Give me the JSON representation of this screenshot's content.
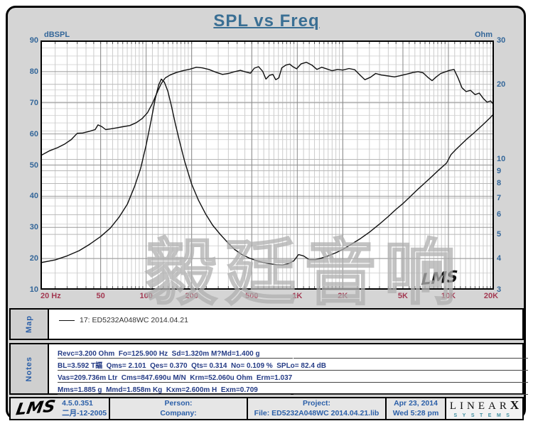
{
  "title": "SPL vs Freq",
  "watermark": "毅廷音响",
  "chart_data": {
    "type": "line",
    "title": "SPL vs Freq",
    "grid": true,
    "x_axis": {
      "scale": "log",
      "min": 20,
      "max": 20000,
      "tick_values": [
        20,
        50,
        100,
        200,
        500,
        1000,
        2000,
        5000,
        10000,
        20000
      ],
      "tick_labels": [
        "20 Hz",
        "50",
        "100",
        "200",
        "500",
        "1K",
        "2K",
        "5K",
        "10K",
        "20K"
      ]
    },
    "y_left": {
      "label": "dBSPL",
      "scale": "linear",
      "min": 10,
      "max": 90,
      "ticks": [
        90,
        80,
        70,
        60,
        50,
        40,
        30,
        20,
        10
      ]
    },
    "y_right": {
      "label": "Ohm",
      "scale": "log",
      "min": 3,
      "max": 30,
      "ticks": [
        30,
        20,
        10,
        9,
        8,
        7,
        6,
        5,
        4,
        3
      ],
      "minor_lines": [
        3.5,
        4.5,
        5.5,
        6.5,
        7.5,
        8.5,
        9.5,
        11,
        12,
        13,
        14,
        15,
        16,
        17,
        18,
        19,
        22,
        24,
        26,
        28
      ]
    },
    "inplot_logo": "LMS",
    "series": [
      {
        "name": "SPL 17: ED5232A048WC",
        "axis": "left",
        "units": "dBSPL",
        "points": [
          [
            20,
            53
          ],
          [
            23,
            54.6
          ],
          [
            26,
            55.6
          ],
          [
            29,
            56.8
          ],
          [
            32,
            58.2
          ],
          [
            35,
            60.2
          ],
          [
            38,
            60.3
          ],
          [
            42,
            60.8
          ],
          [
            46,
            61.4
          ],
          [
            48,
            62.9
          ],
          [
            51,
            62.3
          ],
          [
            54,
            61.4
          ],
          [
            58,
            61.6
          ],
          [
            63,
            61.9
          ],
          [
            70,
            62.3
          ],
          [
            78,
            62.7
          ],
          [
            86,
            63.6
          ],
          [
            94,
            64.9
          ],
          [
            102,
            66.8
          ],
          [
            110,
            69.8
          ],
          [
            118,
            73.2
          ],
          [
            126,
            76.2
          ],
          [
            134,
            78
          ],
          [
            144,
            78.9
          ],
          [
            158,
            79.7
          ],
          [
            175,
            80.3
          ],
          [
            195,
            80.8
          ],
          [
            215,
            81.4
          ],
          [
            235,
            81.2
          ],
          [
            260,
            80.7
          ],
          [
            290,
            79.8
          ],
          [
            320,
            79.1
          ],
          [
            350,
            79.4
          ],
          [
            385,
            80
          ],
          [
            420,
            80.4
          ],
          [
            455,
            79.9
          ],
          [
            490,
            79.5
          ],
          [
            520,
            81.1
          ],
          [
            555,
            81.6
          ],
          [
            590,
            80.1
          ],
          [
            620,
            77.6
          ],
          [
            655,
            78.8
          ],
          [
            690,
            79.1
          ],
          [
            720,
            77.4
          ],
          [
            755,
            78
          ],
          [
            790,
            81.2
          ],
          [
            840,
            82.1
          ],
          [
            890,
            82.4
          ],
          [
            940,
            81.5
          ],
          [
            990,
            80.9
          ],
          [
            1060,
            82.5
          ],
          [
            1150,
            83
          ],
          [
            1250,
            82.1
          ],
          [
            1350,
            80.7
          ],
          [
            1450,
            81.4
          ],
          [
            1560,
            80.9
          ],
          [
            1700,
            80.3
          ],
          [
            1850,
            80.7
          ],
          [
            2000,
            80.5
          ],
          [
            2200,
            81
          ],
          [
            2400,
            80.6
          ],
          [
            2600,
            78.9
          ],
          [
            2800,
            77.4
          ],
          [
            3050,
            78.2
          ],
          [
            3300,
            79.4
          ],
          [
            3600,
            78.9
          ],
          [
            4000,
            78.6
          ],
          [
            4400,
            78.3
          ],
          [
            4800,
            78.7
          ],
          [
            5300,
            79.2
          ],
          [
            5800,
            79.7
          ],
          [
            6300,
            80
          ],
          [
            6800,
            79.6
          ],
          [
            7300,
            78.2
          ],
          [
            7800,
            77.1
          ],
          [
            8300,
            78.3
          ],
          [
            8900,
            79.4
          ],
          [
            9500,
            79.9
          ],
          [
            10200,
            80.4
          ],
          [
            10900,
            80.7
          ],
          [
            11600,
            77.9
          ],
          [
            12300,
            74.8
          ],
          [
            13100,
            73.6
          ],
          [
            14000,
            74
          ],
          [
            15000,
            72.6
          ],
          [
            16000,
            73.1
          ],
          [
            17000,
            71.4
          ],
          [
            18000,
            70.2
          ],
          [
            19000,
            70.6
          ],
          [
            20000,
            69.3
          ]
        ]
      },
      {
        "name": "Impedance 17: ED5232A048WC",
        "axis": "right",
        "units": "Ohm",
        "points": [
          [
            20,
            3.85
          ],
          [
            25,
            3.95
          ],
          [
            30,
            4.1
          ],
          [
            36,
            4.3
          ],
          [
            42,
            4.55
          ],
          [
            50,
            4.9
          ],
          [
            58,
            5.3
          ],
          [
            66,
            5.85
          ],
          [
            75,
            6.6
          ],
          [
            84,
            7.8
          ],
          [
            92,
            9.2
          ],
          [
            100,
            11.4
          ],
          [
            108,
            14.4
          ],
          [
            115,
            17.6
          ],
          [
            121,
            19.9
          ],
          [
            126,
            21
          ],
          [
            132,
            20.4
          ],
          [
            139,
            18.8
          ],
          [
            147,
            16.4
          ],
          [
            156,
            13.9
          ],
          [
            167,
            11.7
          ],
          [
            180,
            9.8
          ],
          [
            200,
            7.95
          ],
          [
            222,
            6.85
          ],
          [
            247,
            6.05
          ],
          [
            275,
            5.45
          ],
          [
            305,
            5.05
          ],
          [
            345,
            4.65
          ],
          [
            385,
            4.35
          ],
          [
            430,
            4.15
          ],
          [
            480,
            4.02
          ],
          [
            540,
            3.92
          ],
          [
            600,
            3.85
          ],
          [
            660,
            3.81
          ],
          [
            730,
            3.78
          ],
          [
            800,
            3.77
          ],
          [
            880,
            3.82
          ],
          [
            950,
            3.92
          ],
          [
            1020,
            4.15
          ],
          [
            1100,
            4.1
          ],
          [
            1200,
            3.96
          ],
          [
            1320,
            3.96
          ],
          [
            1450,
            4.02
          ],
          [
            1600,
            4.1
          ],
          [
            1800,
            4.22
          ],
          [
            2000,
            4.35
          ],
          [
            2300,
            4.58
          ],
          [
            2600,
            4.8
          ],
          [
            3000,
            5.1
          ],
          [
            3500,
            5.5
          ],
          [
            4000,
            5.9
          ],
          [
            4500,
            6.3
          ],
          [
            5000,
            6.65
          ],
          [
            5600,
            7.1
          ],
          [
            6300,
            7.6
          ],
          [
            7000,
            8.05
          ],
          [
            7800,
            8.55
          ],
          [
            8700,
            9.1
          ],
          [
            9700,
            9.65
          ],
          [
            10400,
            10.45
          ],
          [
            11200,
            10.95
          ],
          [
            12100,
            11.45
          ],
          [
            13100,
            12
          ],
          [
            14500,
            12.65
          ],
          [
            16000,
            13.35
          ],
          [
            17500,
            14.05
          ],
          [
            19000,
            14.75
          ],
          [
            20000,
            15.25
          ]
        ]
      }
    ]
  },
  "map": {
    "label": "Map",
    "legend": "17: ED5232A048WC    2014.04.21"
  },
  "notes": {
    "label": "Notes",
    "lines": [
      "Revc=3.200 Ohm  Fo=125.900 Hz  Sd=1.320m M?Md=1.400 g",
      "BL=3.592 T諨  Qms= 2.101  Qes= 0.370  Qts= 0.314  No= 0.109 %  SPLo= 82.4 dB",
      "Vas=209.736m Ltr  Cms=847.690u M/N  Krm=52.060u Ohm  Erm=1.037",
      "Mms=1.885 g  Mmd=1.858m Kg  Kxm=2.600m H  Exm=0.709"
    ]
  },
  "footer": {
    "logo": "LMS",
    "version": "4.5.0.351",
    "version_date": "二月-12-2005",
    "person_label": "Person:",
    "company_label": "Company:",
    "project_label": "Project:",
    "file_label": "File: ED5232A048WC 2014.04.21.lib",
    "date": "Apr 23, 2014",
    "time": "Wed  5:28 pm",
    "brand": {
      "main": "LINEAR",
      "x": "X",
      "sub": "SYSTEMS"
    }
  },
  "colors": {
    "frame_bg": "#d5d5d5",
    "title_blue": "#3a6f94",
    "axis_blue": "#336699",
    "freq_red": "#a33952",
    "notes_navy": "#243b85",
    "footer_blue": "#2b5fa8",
    "curve": "#101010",
    "brand_teal": "#3f8fa0"
  }
}
